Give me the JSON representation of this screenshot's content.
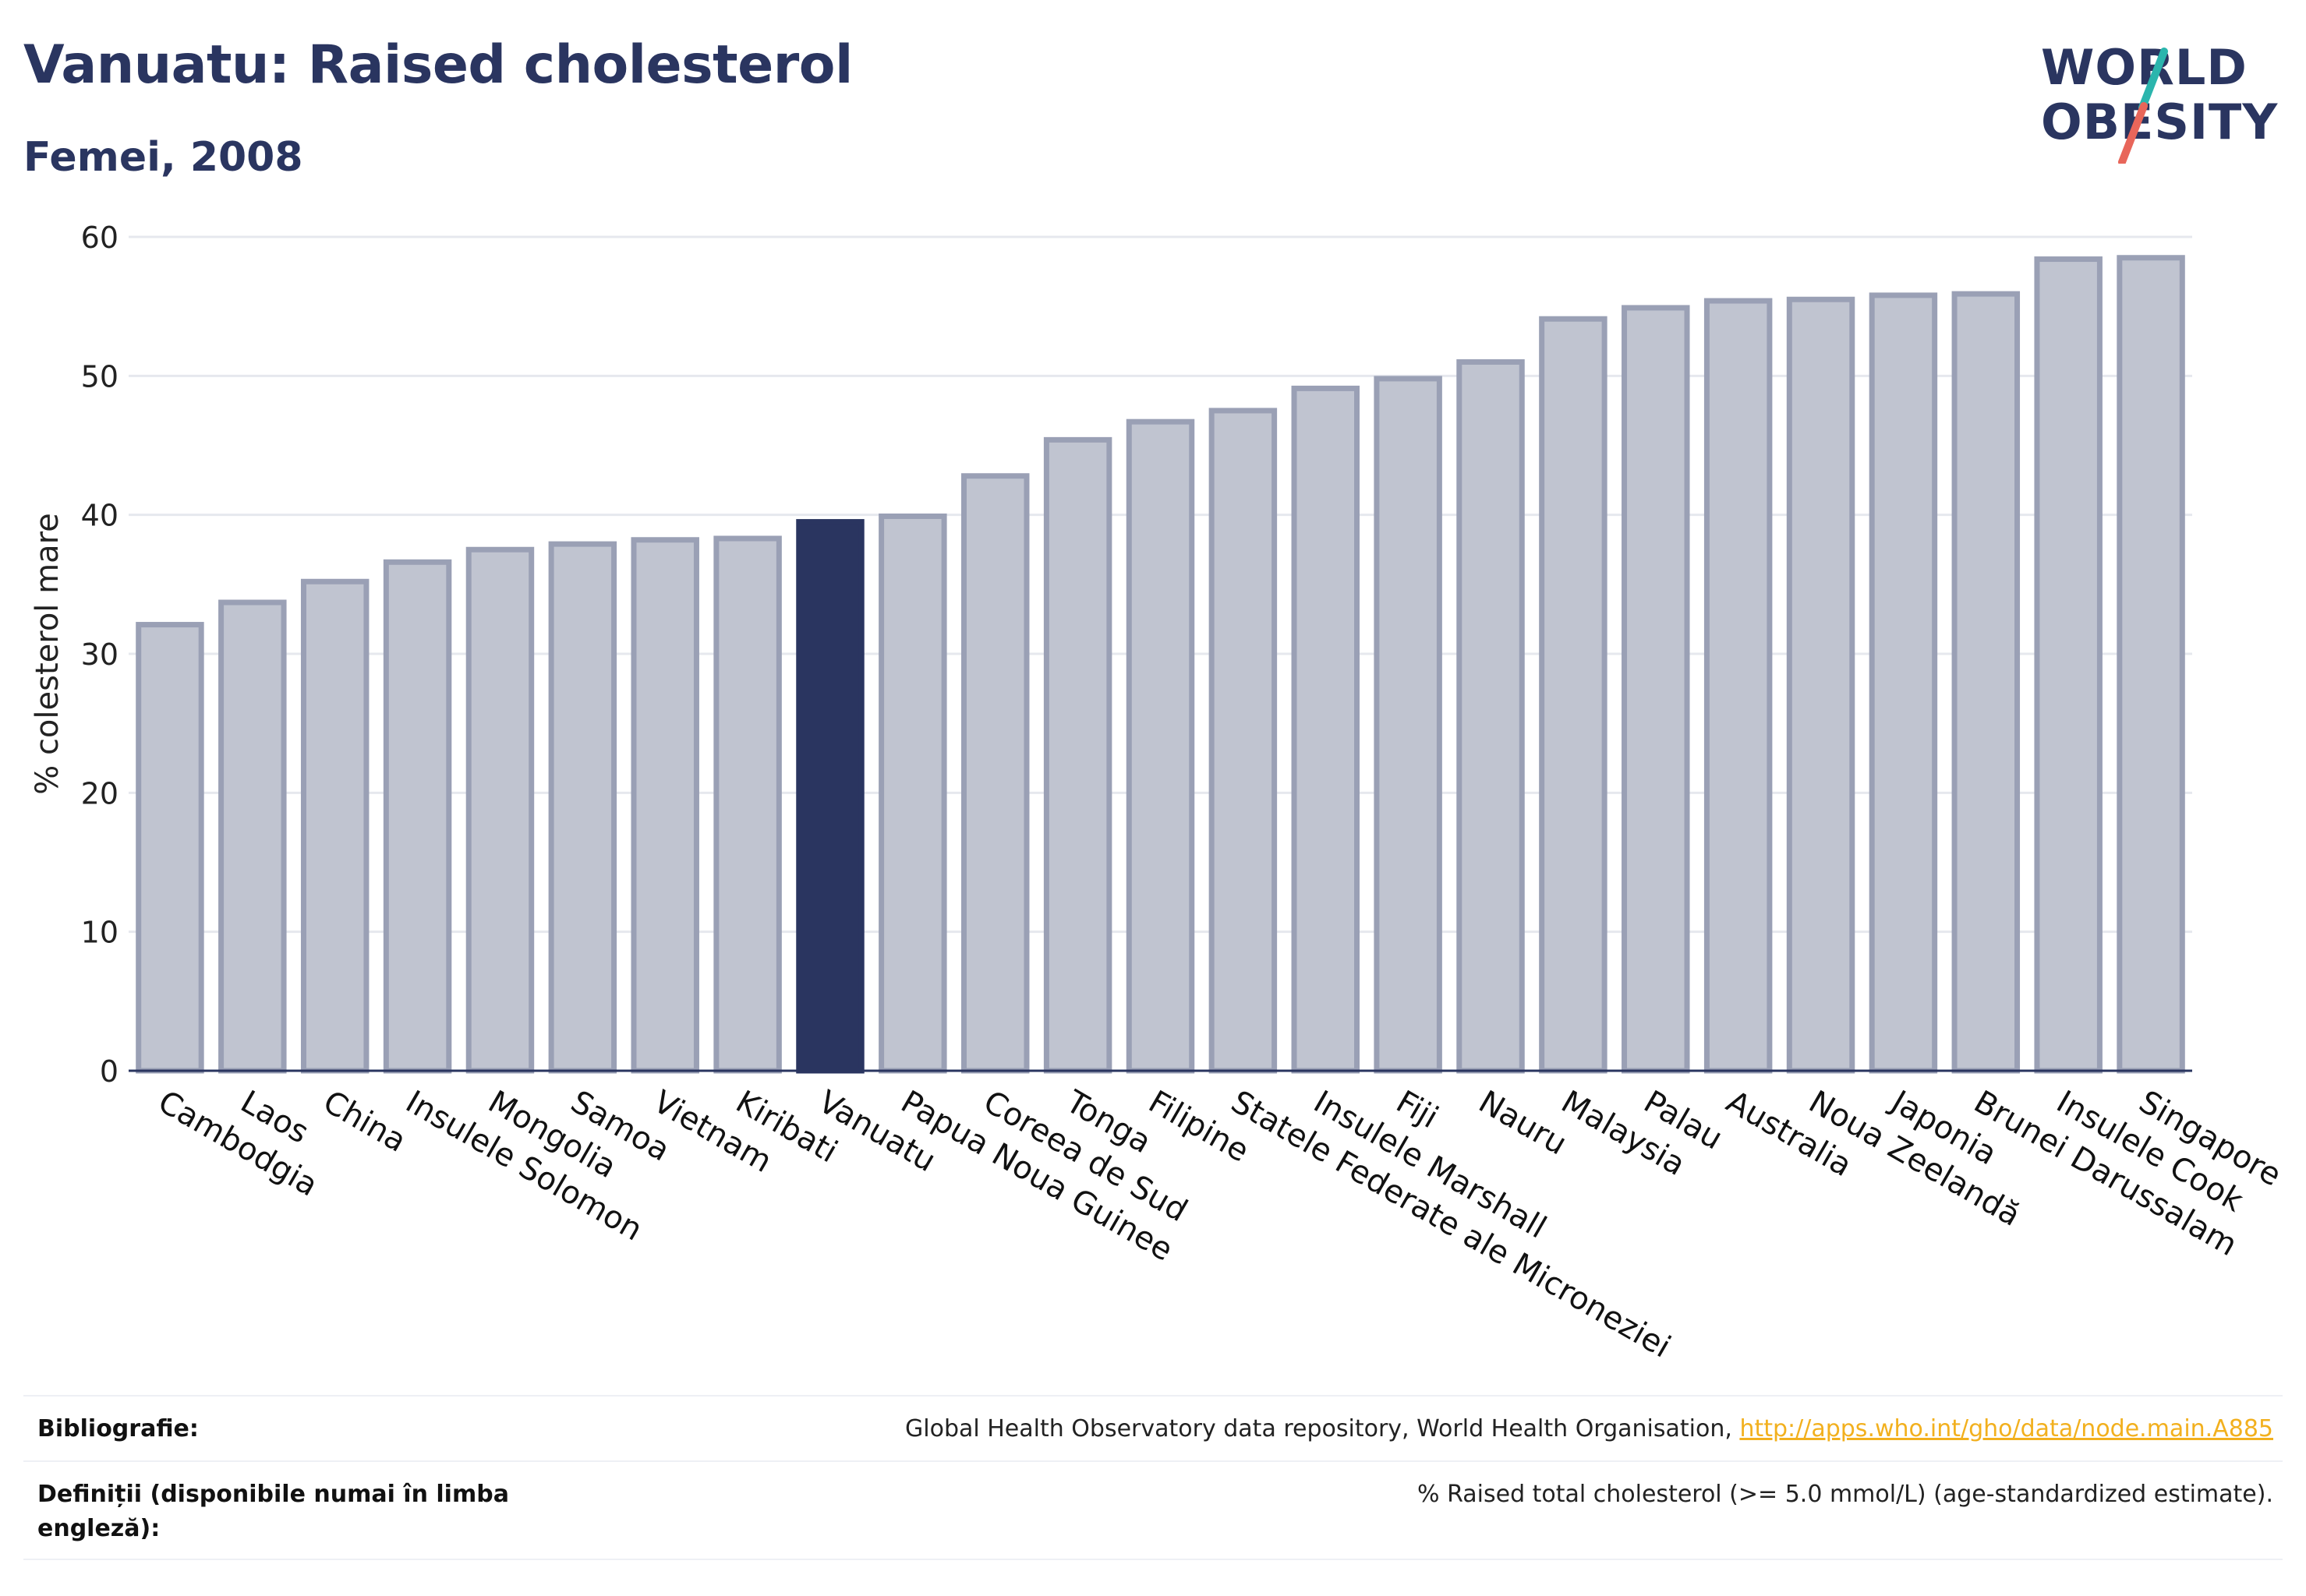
{
  "header": {
    "title": "Vanuatu: Raised cholesterol",
    "subtitle": "Femei, 2008"
  },
  "logo": {
    "line1": "WORLD",
    "line2": "OBESITY",
    "colors": {
      "text": "#2a3560",
      "slash_top": "#2bb5ad",
      "slash_bottom": "#e8665a"
    }
  },
  "chart_data": {
    "type": "bar",
    "ylabel": "% colesterol mare",
    "ylim": [
      0,
      60
    ],
    "yticks": [
      0,
      10,
      20,
      30,
      40,
      50,
      60
    ],
    "grid": true,
    "highlight": "Vanuatu",
    "colors": {
      "bar": "#c0c4d0",
      "bar_border": "#9aa0b5",
      "highlight": "#2a3560",
      "grid": "#e6e8ee"
    },
    "categories": [
      "Cambodgia",
      "Laos",
      "China",
      "Insulele Solomon",
      "Mongolia",
      "Samoa",
      "Vietnam",
      "Kiribati",
      "Vanuatu",
      "Papua Noua Guinee",
      "Coreea de Sud",
      "Tonga",
      "Filipine",
      "Statele Federate ale Microneziei",
      "Insulele Marshall",
      "Fiji",
      "Nauru",
      "Malaysia",
      "Palau",
      "Australia",
      "Noua Zeelandă",
      "Japonia",
      "Brunei Darussalam",
      "Insulele Cook",
      "Singapore"
    ],
    "values": [
      32.1,
      33.7,
      35.2,
      36.6,
      37.5,
      37.9,
      38.2,
      38.3,
      39.5,
      39.9,
      42.8,
      45.4,
      46.7,
      47.5,
      49.1,
      49.8,
      51.0,
      54.1,
      54.9,
      55.4,
      55.5,
      55.8,
      55.9,
      58.4,
      58.5
    ]
  },
  "footer": {
    "bibliography_label": "Bibliografie:",
    "bibliography_text": "Global Health Observatory data repository, World Health Organisation, ",
    "bibliography_link": "http://apps.who.int/gho/data/node.main.A885",
    "definitions_label": "Definiții (disponibile numai în limba engleză):",
    "definitions_text": "% Raised total cholesterol (>= 5.0 mmol/L) (age-standardized estimate)."
  }
}
